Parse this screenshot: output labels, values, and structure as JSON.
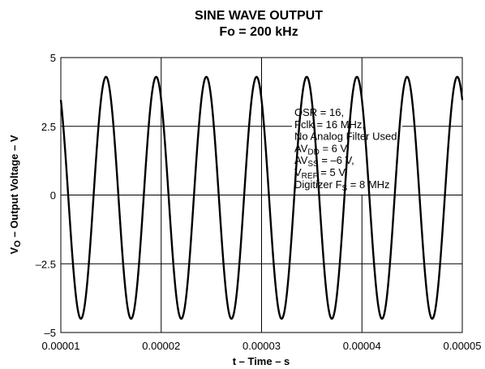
{
  "chart_data": {
    "type": "line",
    "title": "SINE WAVE OUTPUT",
    "subtitle": "Fo = 200 kHz",
    "xlabel": "t – Time – s",
    "ylabel": "V",
    "ylabel_sub": "O",
    "ylabel_rest": " – Output Voltage – V",
    "xlim": [
      1e-05,
      5e-05
    ],
    "ylim": [
      -5,
      5
    ],
    "x_ticks": [
      "0.00001",
      "0.00002",
      "0.00003",
      "0.00004",
      "0.00005"
    ],
    "x_tick_values": [
      1e-05,
      2e-05,
      3e-05,
      4e-05,
      5e-05
    ],
    "y_ticks": [
      "5",
      "2.5",
      "0",
      "–2.5",
      "–5"
    ],
    "y_tick_values": [
      5,
      2.5,
      0,
      -2.5,
      -5
    ],
    "grid": true,
    "series": [
      {
        "frequency_hz": 200000,
        "amplitude_v": 4.4,
        "offset_v": -0.1,
        "first_peak_s": 1.45e-05
      }
    ],
    "annotation": [
      {
        "parts": [
          {
            "t": "OSR = 16,"
          }
        ]
      },
      {
        "parts": [
          {
            "t": "Fclk = 16 MHz,"
          }
        ]
      },
      {
        "parts": [
          {
            "t": "No Analog Filter Used,"
          }
        ]
      },
      {
        "parts": [
          {
            "t": "AV"
          },
          {
            "t": "DD",
            "sub": true
          },
          {
            "t": " = 6 V,"
          }
        ]
      },
      {
        "parts": [
          {
            "t": "AV"
          },
          {
            "t": "SS",
            "sub": true
          },
          {
            "t": " = –6 V,"
          }
        ]
      },
      {
        "parts": [
          {
            "t": "V"
          },
          {
            "t": "REF",
            "sub": true
          },
          {
            "t": " = 5 V,"
          }
        ]
      },
      {
        "parts": [
          {
            "t": "Digitizer F"
          },
          {
            "t": "S",
            "sub": true
          },
          {
            "t": " = 8 MHz"
          }
        ]
      }
    ]
  }
}
